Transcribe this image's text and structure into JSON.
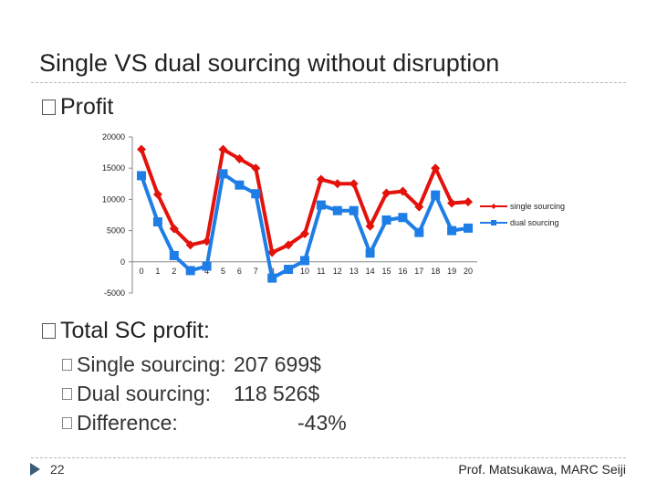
{
  "slide": {
    "title": "Single VS dual sourcing without disruption",
    "profit_bullet": "Profit",
    "total_bullet": "Total SC profit:",
    "items": [
      {
        "label": "Single sourcing:",
        "value": "207 699$"
      },
      {
        "label": "Dual sourcing:",
        "value": "118 526$"
      },
      {
        "label": "Difference:",
        "value": "-43%"
      }
    ],
    "page_number": "22",
    "credit": "Prof. Matsukawa, MARC Seiji"
  },
  "chart_data": {
    "type": "line",
    "x": [
      0,
      1,
      2,
      3,
      4,
      5,
      6,
      7,
      8,
      9,
      10,
      11,
      12,
      13,
      14,
      15,
      16,
      17,
      18,
      19,
      20
    ],
    "ylim": [
      -5000,
      20000
    ],
    "yticks": [
      20000,
      15000,
      10000,
      5000,
      0,
      -5000
    ],
    "grid": false,
    "legend_position": "right",
    "colors": {
      "single": "#e3120b",
      "dual": "#1f7ee6"
    },
    "series": [
      {
        "name": "single sourcing",
        "marker": "diamond",
        "values": [
          18000,
          10800,
          5300,
          2700,
          3300,
          18000,
          16500,
          15000,
          1500,
          2700,
          4500,
          13200,
          12500,
          12500,
          5700,
          11000,
          11300,
          8800,
          15000,
          9400,
          9600
        ]
      },
      {
        "name": "dual sourcing",
        "marker": "square",
        "values": [
          13800,
          6400,
          1000,
          -1400,
          -700,
          14100,
          12300,
          10900,
          -2600,
          -1200,
          200,
          9100,
          8200,
          8200,
          1400,
          6700,
          7100,
          4700,
          10700,
          5000,
          5400
        ]
      }
    ]
  }
}
